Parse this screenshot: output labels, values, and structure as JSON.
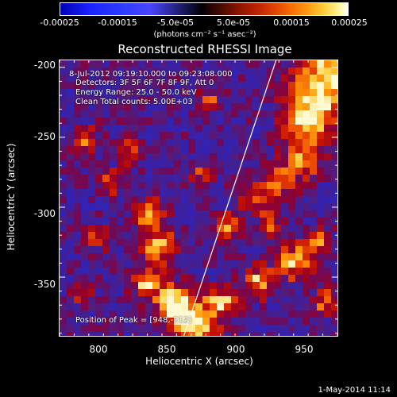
{
  "colorbar": {
    "ticks": [
      "-0.00025",
      "-0.00015",
      "-5.0e-05",
      "5.0e-05",
      "0.00015",
      "0.00025"
    ],
    "units": "(photons cm⁻² s⁻¹ asec⁻²)"
  },
  "title": "Reconstructed RHESSI Image",
  "annotations": {
    "time_range": "8-Jul-2012 09:19:10.000 to 09:23:08.000",
    "detectors": "Detectors: 3F 5F 6F 7F 8F 9F, Att 0",
    "energy": "Energy Range: 25.0 - 50.0 keV",
    "clean": "Clean    Total counts: 5.00E+03",
    "peak": "Position of Peak = [948,-212]"
  },
  "axes": {
    "xlabel": "Heliocentric X (arcsec)",
    "ylabel": "Heliocentric Y (arcsec)",
    "xticks": [
      "800",
      "850",
      "900",
      "950"
    ],
    "yticks": [
      "-200",
      "-250",
      "-300",
      "-350"
    ]
  },
  "timestamp": "1-May-2014 11:14",
  "chart_data": {
    "type": "heatmap",
    "title": "Reconstructed RHESSI Image",
    "xlabel": "Heliocentric X (arcsec)",
    "ylabel": "Heliocentric Y (arcsec)",
    "xlim": [
      775,
      965
    ],
    "ylim": [
      -392,
      -195
    ],
    "colorbar_range": [
      -0.00025,
      0.00025
    ],
    "peak": [
      948,
      -212
    ],
    "limb_line": [
      [
        860,
        -392
      ],
      [
        923,
        -195
      ]
    ]
  }
}
